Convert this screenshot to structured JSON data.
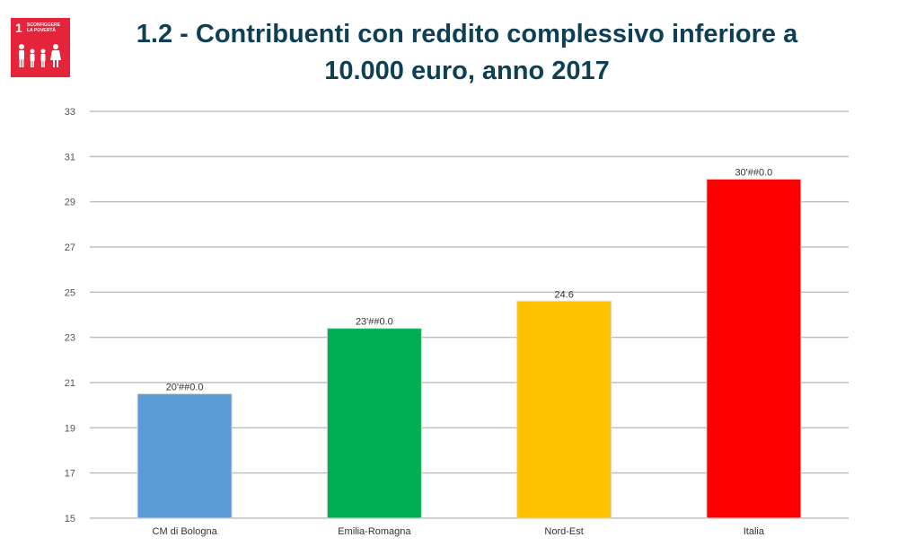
{
  "badge": {
    "number": "1",
    "text": "SCONFIGGERE LA POVERTÀ",
    "icon": "family-people-icon",
    "color": "#e5243b"
  },
  "title": {
    "line1": "1.2 - Contribuenti con reddito complessivo inferiore a",
    "line2": "10.000 euro, anno 2017"
  },
  "chart_data": {
    "type": "bar",
    "categories": [
      "CM di Bologna",
      "Emilia-Romagna",
      "Nord-Est",
      "Italia"
    ],
    "values": [
      20.5,
      23.4,
      24.6,
      30.0
    ],
    "data_labels": [
      "20'##0.0",
      "23'##0.0",
      "24.6",
      "30'##0.0"
    ],
    "colors": [
      "#5b9bd5",
      "#00b050",
      "#ffc000",
      "#ff0000"
    ],
    "ylim": [
      15,
      33
    ],
    "yticks": [
      15,
      17,
      19,
      21,
      23,
      25,
      27,
      29,
      31,
      33
    ],
    "grid": true,
    "legend": "none",
    "xlabel": "",
    "ylabel": ""
  }
}
